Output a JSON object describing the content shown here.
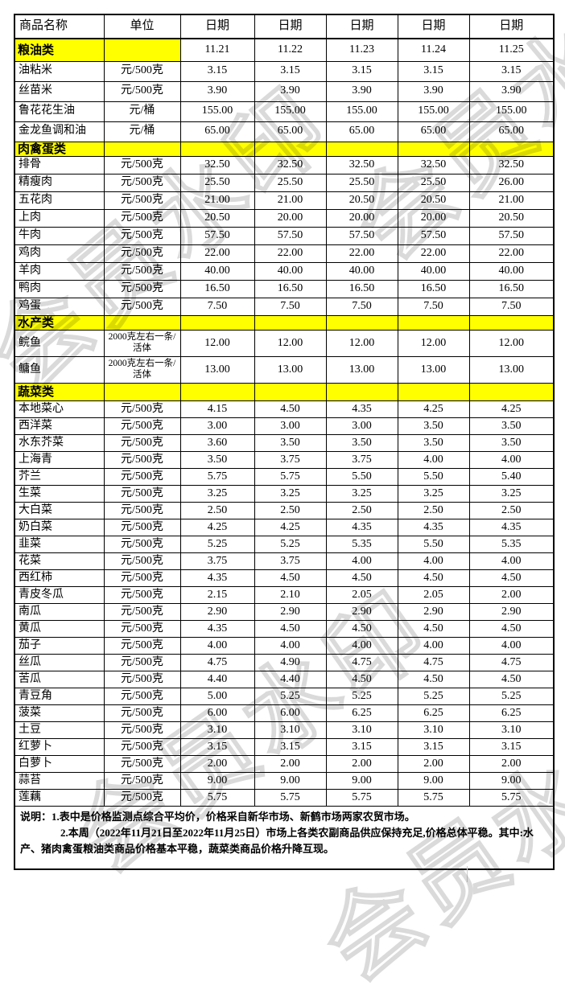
{
  "table": {
    "header": {
      "product": "商品名称",
      "unit": "单位",
      "date_label": "日期"
    },
    "dates": [
      "11.21",
      "11.22",
      "11.23",
      "11.24",
      "11.25"
    ],
    "sections": [
      {
        "label": "粮油类",
        "show_dates": true,
        "rows": [
          {
            "name": "油粘米",
            "unit": "元/500克",
            "values": [
              "3.15",
              "3.15",
              "3.15",
              "3.15",
              "3.15"
            ]
          },
          {
            "name": "丝苗米",
            "unit": "元/500克",
            "values": [
              "3.90",
              "3.90",
              "3.90",
              "3.90",
              "3.90"
            ]
          },
          {
            "name": "鲁花花生油",
            "unit": "元/桶",
            "values": [
              "155.00",
              "155.00",
              "155.00",
              "155.00",
              "155.00"
            ]
          },
          {
            "name": "金龙鱼调和油",
            "unit": "元/桶",
            "values": [
              "65.00",
              "65.00",
              "65.00",
              "65.00",
              "65.00"
            ]
          }
        ]
      },
      {
        "label": "肉禽蛋类",
        "show_dates": false,
        "rows": [
          {
            "name": "排骨",
            "unit": "元/500克",
            "values": [
              "32.50",
              "32.50",
              "32.50",
              "32.50",
              "32.50"
            ]
          },
          {
            "name": "精瘦肉",
            "unit": "元/500克",
            "values": [
              "25.50",
              "25.50",
              "25.50",
              "25.50",
              "26.00"
            ]
          },
          {
            "name": "五花肉",
            "unit": "元/500克",
            "values": [
              "21.00",
              "21.00",
              "20.50",
              "20.50",
              "21.00"
            ]
          },
          {
            "name": "上肉",
            "unit": "元/500克",
            "values": [
              "20.50",
              "20.00",
              "20.00",
              "20.00",
              "20.50"
            ]
          },
          {
            "name": "牛肉",
            "unit": "元/500克",
            "values": [
              "57.50",
              "57.50",
              "57.50",
              "57.50",
              "57.50"
            ]
          },
          {
            "name": "鸡肉",
            "unit": "元/500克",
            "values": [
              "22.00",
              "22.00",
              "22.00",
              "22.00",
              "22.00"
            ]
          },
          {
            "name": "羊肉",
            "unit": "元/500克",
            "values": [
              "40.00",
              "40.00",
              "40.00",
              "40.00",
              "40.00"
            ]
          },
          {
            "name": "鸭肉",
            "unit": "元/500克",
            "values": [
              "16.50",
              "16.50",
              "16.50",
              "16.50",
              "16.50"
            ]
          },
          {
            "name": "鸡蛋",
            "unit": "元/500克",
            "values": [
              "7.50",
              "7.50",
              "7.50",
              "7.50",
              "7.50"
            ]
          }
        ]
      },
      {
        "label": "水产类",
        "show_dates": false,
        "rows": [
          {
            "name": "鲩鱼",
            "unit": "2000克左右一条/活体",
            "values": [
              "12.00",
              "12.00",
              "12.00",
              "12.00",
              "12.00"
            ]
          },
          {
            "name": "鳙鱼",
            "unit": "2000克左右一条/活体",
            "values": [
              "13.00",
              "13.00",
              "13.00",
              "13.00",
              "13.00"
            ]
          }
        ]
      },
      {
        "label": "蔬菜类",
        "show_dates": false,
        "rows": [
          {
            "name": "本地菜心",
            "unit": "元/500克",
            "values": [
              "4.15",
              "4.50",
              "4.35",
              "4.25",
              "4.25"
            ]
          },
          {
            "name": "西洋菜",
            "unit": "元/500克",
            "values": [
              "3.00",
              "3.00",
              "3.00",
              "3.50",
              "3.50"
            ]
          },
          {
            "name": "水东芥菜",
            "unit": "元/500克",
            "values": [
              "3.60",
              "3.50",
              "3.50",
              "3.50",
              "3.50"
            ]
          },
          {
            "name": "上海青",
            "unit": "元/500克",
            "values": [
              "3.50",
              "3.75",
              "3.75",
              "4.00",
              "4.00"
            ]
          },
          {
            "name": "芥兰",
            "unit": "元/500克",
            "values": [
              "5.75",
              "5.75",
              "5.50",
              "5.50",
              "5.40"
            ]
          },
          {
            "name": "生菜",
            "unit": "元/500克",
            "values": [
              "3.25",
              "3.25",
              "3.25",
              "3.25",
              "3.25"
            ]
          },
          {
            "name": "大白菜",
            "unit": "元/500克",
            "values": [
              "2.50",
              "2.50",
              "2.50",
              "2.50",
              "2.50"
            ]
          },
          {
            "name": "奶白菜",
            "unit": "元/500克",
            "values": [
              "4.25",
              "4.25",
              "4.35",
              "4.35",
              "4.35"
            ]
          },
          {
            "name": "韭菜",
            "unit": "元/500克",
            "values": [
              "5.25",
              "5.25",
              "5.35",
              "5.50",
              "5.35"
            ]
          },
          {
            "name": "花菜",
            "unit": "元/500克",
            "values": [
              "3.75",
              "3.75",
              "4.00",
              "4.00",
              "4.00"
            ]
          },
          {
            "name": "西红柿",
            "unit": "元/500克",
            "values": [
              "4.35",
              "4.50",
              "4.50",
              "4.50",
              "4.50"
            ]
          },
          {
            "name": "青皮冬瓜",
            "unit": "元/500克",
            "values": [
              "2.15",
              "2.10",
              "2.05",
              "2.05",
              "2.00"
            ]
          },
          {
            "name": "南瓜",
            "unit": "元/500克",
            "values": [
              "2.90",
              "2.90",
              "2.90",
              "2.90",
              "2.90"
            ]
          },
          {
            "name": "黄瓜",
            "unit": "元/500克",
            "values": [
              "4.35",
              "4.50",
              "4.50",
              "4.50",
              "4.50"
            ]
          },
          {
            "name": "茄子",
            "unit": "元/500克",
            "values": [
              "4.00",
              "4.00",
              "4.00",
              "4.00",
              "4.00"
            ]
          },
          {
            "name": "丝瓜",
            "unit": "元/500克",
            "values": [
              "4.75",
              "4.90",
              "4.75",
              "4.75",
              "4.75"
            ]
          },
          {
            "name": "苦瓜",
            "unit": "元/500克",
            "values": [
              "4.40",
              "4.40",
              "4.50",
              "4.50",
              "4.50"
            ]
          },
          {
            "name": "青豆角",
            "unit": "元/500克",
            "values": [
              "5.00",
              "5.25",
              "5.25",
              "5.25",
              "5.25"
            ]
          },
          {
            "name": "菠菜",
            "unit": "元/500克",
            "values": [
              "6.00",
              "6.00",
              "6.25",
              "6.25",
              "6.25"
            ]
          },
          {
            "name": "土豆",
            "unit": "元/500克",
            "values": [
              "3.10",
              "3.10",
              "3.10",
              "3.10",
              "3.10"
            ]
          },
          {
            "name": "红萝卜",
            "unit": "元/500克",
            "values": [
              "3.15",
              "3.15",
              "3.15",
              "3.15",
              "3.15"
            ]
          },
          {
            "name": "白萝卜",
            "unit": "元/500克",
            "values": [
              "2.00",
              "2.00",
              "2.00",
              "2.00",
              "2.00"
            ]
          },
          {
            "name": "蒜苔",
            "unit": "元/500克",
            "values": [
              "9.00",
              "9.00",
              "9.00",
              "9.00",
              "9.00"
            ]
          },
          {
            "name": "莲藕",
            "unit": "元/500克",
            "values": [
              "5.75",
              "5.75",
              "5.75",
              "5.75",
              "5.75"
            ]
          }
        ]
      }
    ],
    "notes": [
      "说明：1.表中是价格监测点综合平均价，价格采自新华市场、新鹤市场两家农贸市场。",
      "2.本周（2022年11月21日至2022年11月25日）市场上各类农副商品供应保持充足,价格总体平稳。其中:水产、猪肉禽蛋粮油类商品价格基本平稳，蔬菜类商品价格升降互现。"
    ]
  },
  "watermark": {
    "text": "会员水印"
  },
  "colors": {
    "section_bg": "#ffff00",
    "border": "#000000",
    "watermark": "#dadada",
    "background": "#ffffff"
  }
}
